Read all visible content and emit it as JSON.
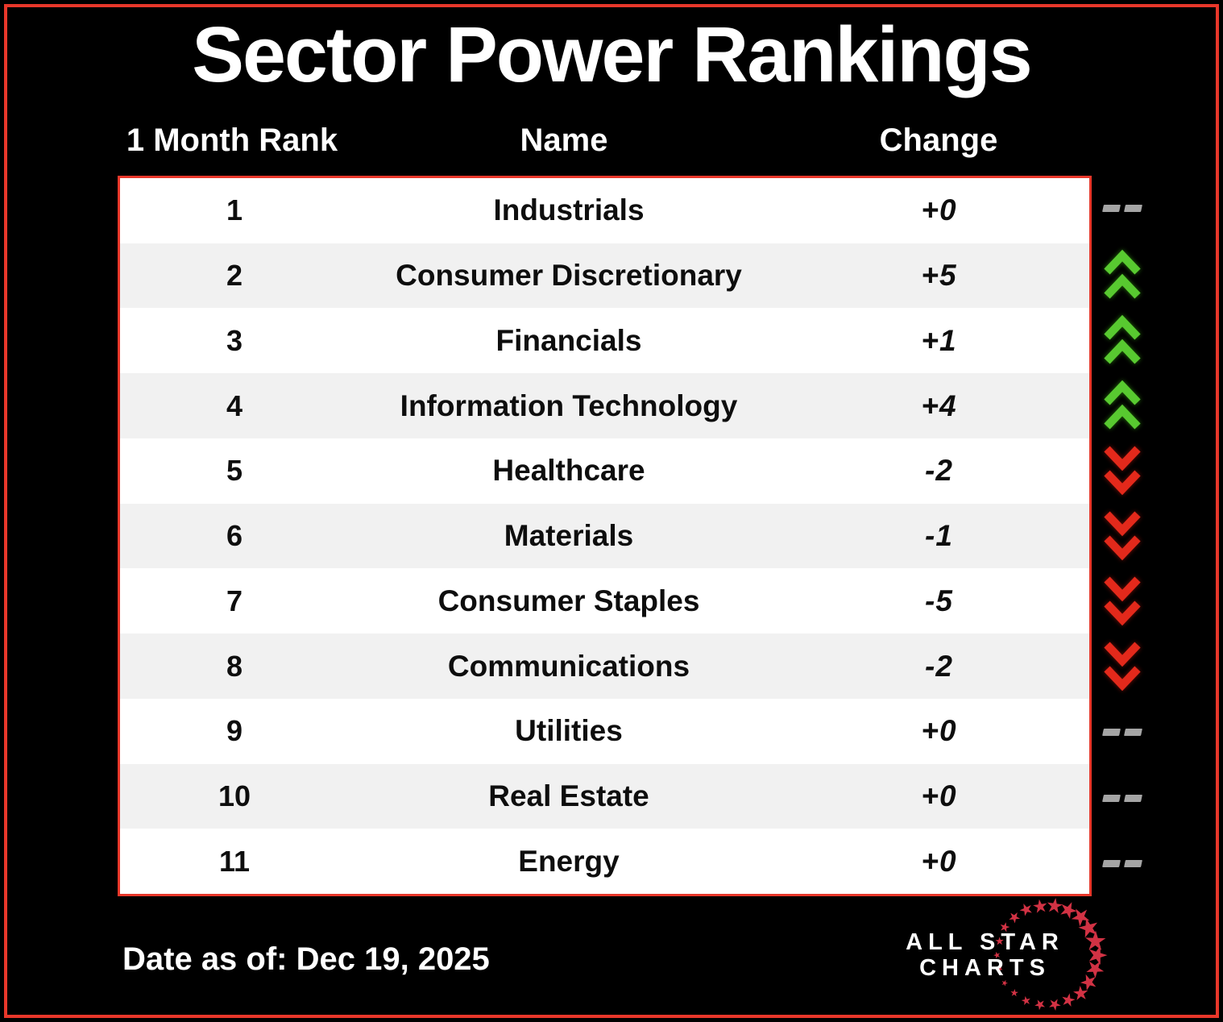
{
  "title": "Sector Power Rankings",
  "header": {
    "rank": "1 Month Rank",
    "name": "Name",
    "change": "Change"
  },
  "rows": [
    {
      "rank": "1",
      "name": "Industrials",
      "change": "+0",
      "trend": "flat"
    },
    {
      "rank": "2",
      "name": "Consumer Discretionary",
      "change": "+5",
      "trend": "up"
    },
    {
      "rank": "3",
      "name": "Financials",
      "change": "+1",
      "trend": "up"
    },
    {
      "rank": "4",
      "name": "Information Technology",
      "change": "+4",
      "trend": "up"
    },
    {
      "rank": "5",
      "name": "Healthcare",
      "change": "-2",
      "trend": "down"
    },
    {
      "rank": "6",
      "name": "Materials",
      "change": "-1",
      "trend": "down"
    },
    {
      "rank": "7",
      "name": "Consumer Staples",
      "change": "-5",
      "trend": "down"
    },
    {
      "rank": "8",
      "name": "Communications",
      "change": "-2",
      "trend": "down"
    },
    {
      "rank": "9",
      "name": "Utilities",
      "change": "+0",
      "trend": "flat"
    },
    {
      "rank": "10",
      "name": "Real Estate",
      "change": "+0",
      "trend": "flat"
    },
    {
      "rank": "11",
      "name": "Energy",
      "change": "+0",
      "trend": "flat"
    }
  ],
  "footer": {
    "date": "Date as of: Dec 19, 2025"
  },
  "logo": {
    "line1": "ALL STAR",
    "line2": "CHARTS"
  },
  "colors": {
    "background": "#000000",
    "accent_red_border": "#e8372a",
    "row_alt_gray": "#f1f1f1",
    "row_white": "#ffffff",
    "text_black": "#0e0e0e",
    "text_white": "#ffffff",
    "trend_up_green": "#58c930",
    "trend_down_red": "#e3291b",
    "trend_flat_gray": "#a5a5a5",
    "logo_star_red": "#d23244"
  },
  "chart_data": {
    "type": "table",
    "title": "Sector Power Rankings",
    "columns": [
      "1 Month Rank",
      "Name",
      "Change"
    ],
    "rows": [
      [
        1,
        "Industrials",
        "+0"
      ],
      [
        2,
        "Consumer Discretionary",
        "+5"
      ],
      [
        3,
        "Financials",
        "+1"
      ],
      [
        4,
        "Information Technology",
        "+4"
      ],
      [
        5,
        "Healthcare",
        "-2"
      ],
      [
        6,
        "Materials",
        "-1"
      ],
      [
        7,
        "Consumer Staples",
        "-5"
      ],
      [
        8,
        "Communications",
        "-2"
      ],
      [
        9,
        "Utilities",
        "+0"
      ],
      [
        10,
        "Real Estate",
        "+0"
      ],
      [
        11,
        "Energy",
        "+0"
      ]
    ],
    "trend_indicators": [
      "flat",
      "up",
      "up",
      "up",
      "down",
      "down",
      "down",
      "down",
      "flat",
      "flat",
      "flat"
    ],
    "as_of_date": "Dec 19, 2025"
  }
}
